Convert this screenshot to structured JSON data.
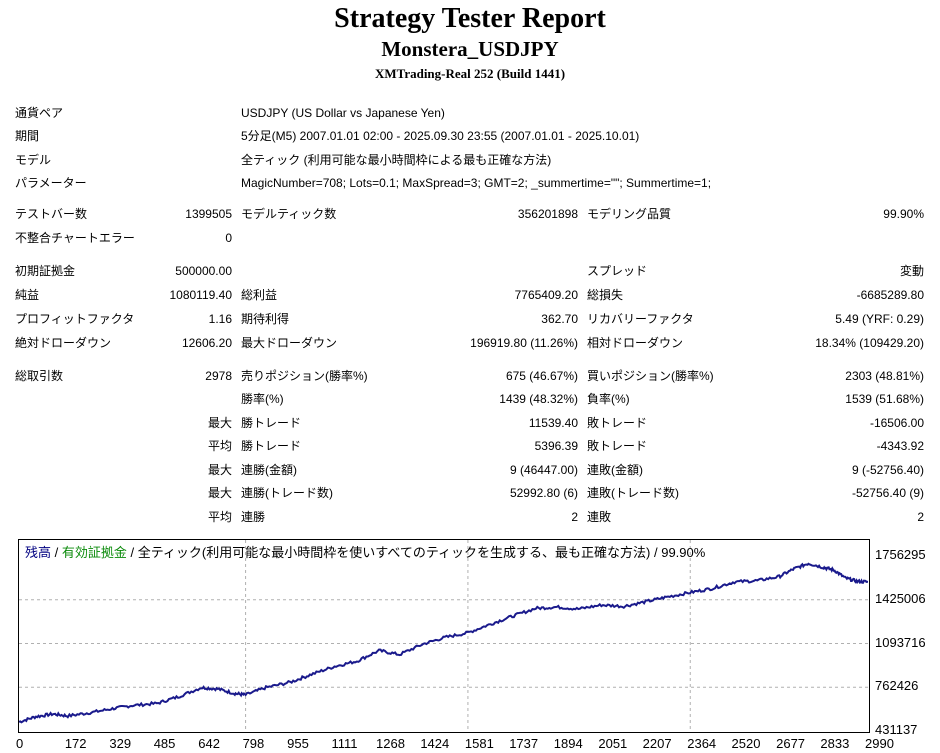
{
  "header": {
    "title": "Strategy Tester Report",
    "subtitle": "Monstera_USDJPY",
    "build": "XMTrading-Real 252 (Build 1441)"
  },
  "info": {
    "pair_label": "通貨ペア",
    "pair_value": "USDJPY (US Dollar vs Japanese Yen)",
    "period_label": "期間",
    "period_value": "5分足(M5) 2007.01.01 02:00 - 2025.09.30 23:55 (2007.01.01 - 2025.10.01)",
    "model_label": "モデル",
    "model_value": "全ティック (利用可能な最小時間枠による最も正確な方法)",
    "params_label": "パラメーター",
    "params_value": "MagicNumber=708; Lots=0.1; MaxSpread=3; GMT=2; _summertime=\"\"; Summertime=1;"
  },
  "stats": {
    "bars_label": "テストバー数",
    "bars_value": "1399505",
    "ticks_label": "モデルティック数",
    "ticks_value": "356201898",
    "quality_label": "モデリング品質",
    "quality_value": "99.90%",
    "mismatch_label": "不整合チャートエラー",
    "mismatch_value": "0",
    "deposit_label": "初期証拠金",
    "deposit_value": "500000.00",
    "spread_label": "スプレッド",
    "spread_value": "変動",
    "net_label": "純益",
    "net_value": "1080119.40",
    "gross_profit_label": "総利益",
    "gross_profit_value": "7765409.20",
    "gross_loss_label": "総損失",
    "gross_loss_value": "-6685289.80",
    "pf_label": "プロフィットファクタ",
    "pf_value": "1.16",
    "expected_label": "期待利得",
    "expected_value": "362.70",
    "recovery_label": "リカバリーファクタ",
    "recovery_value": "5.49 (YRF: 0.29)",
    "abs_dd_label": "絶対ドローダウン",
    "abs_dd_value": "12606.20",
    "max_dd_label": "最大ドローダウン",
    "max_dd_value": "196919.80 (11.26%)",
    "rel_dd_label": "相対ドローダウン",
    "rel_dd_value": "18.34% (109429.20)",
    "trades_label": "総取引数",
    "trades_value": "2978",
    "short_label": "売りポジション(勝率%)",
    "short_value": "675 (46.67%)",
    "long_label": "買いポジション(勝率%)",
    "long_value": "2303 (48.81%)",
    "win_label": "勝率(%)",
    "win_value": "1439 (48.32%)",
    "loss_label": "負率(%)",
    "loss_value": "1539 (51.68%)",
    "max_word": "最大",
    "avg_word": "平均",
    "max_win_label": "勝トレード",
    "max_win_value": "11539.40",
    "max_loss_label": "敗トレード",
    "max_loss_value": "-16506.00",
    "avg_win_label": "勝トレード",
    "avg_win_value": "5396.39",
    "avg_loss_label": "敗トレード",
    "avg_loss_value": "-4343.92",
    "cons_win_amt_label": "連勝(金額)",
    "cons_win_amt_value": "9 (46447.00)",
    "cons_loss_amt_label": "連敗(金額)",
    "cons_loss_amt_value": "9 (-52756.40)",
    "cons_win_cnt_label": "連勝(トレード数)",
    "cons_win_cnt_value": "52992.80 (6)",
    "cons_loss_cnt_label": "連敗(トレード数)",
    "cons_loss_cnt_value": "-52756.40 (9)",
    "avg_cons_win_label": "連勝",
    "avg_cons_win_value": "2",
    "avg_cons_loss_label": "連敗",
    "avg_cons_loss_value": "2"
  },
  "chart_legend": {
    "balance": "残高",
    "sep1": " / ",
    "equity": "有効証拠金",
    "rest": " / 全ティック(利用可能な最小時間枠を使いすべてのティックを生成する、最も正確な方法) / 99.90%"
  },
  "colors": {
    "balance_line": "#1a1a8c",
    "legend_blue": "#000080",
    "legend_green": "#0a8a0a",
    "grid": "#b0b0b0"
  },
  "chart_data": {
    "type": "line",
    "xlabel": "",
    "ylabel": "",
    "y_ticks": [
      "1756295",
      "1425006",
      "1093716",
      "762426",
      "431137"
    ],
    "x_ticks": [
      "0",
      "172",
      "329",
      "485",
      "642",
      "798",
      "955",
      "1111",
      "1268",
      "1424",
      "1581",
      "1737",
      "1894",
      "2051",
      "2207",
      "2364",
      "2520",
      "2677",
      "2833",
      "2990"
    ],
    "ylim": [
      431137,
      1756295
    ],
    "xlim": [
      0,
      2990
    ],
    "series": [
      {
        "x": [
          0,
          60,
          120,
          172,
          250,
          329,
          400,
          485,
          560,
          642,
          700,
          760,
          798,
          870,
          955,
          1030,
          1111,
          1190,
          1268,
          1340,
          1424,
          1500,
          1581,
          1660,
          1737,
          1820,
          1894,
          1970,
          2051,
          2130,
          2207,
          2280,
          2364,
          2440,
          2520,
          2600,
          2677,
          2730,
          2780,
          2833,
          2870,
          2910,
          2950,
          2990
        ],
        "y": [
          500000,
          540000,
          560000,
          545000,
          570000,
          600000,
          625000,
          640000,
          690000,
          760000,
          750000,
          715000,
          705000,
          760000,
          800000,
          860000,
          920000,
          960000,
          1040000,
          1010000,
          1090000,
          1140000,
          1175000,
          1240000,
          1300000,
          1360000,
          1370000,
          1355000,
          1385000,
          1375000,
          1410000,
          1445000,
          1480000,
          1510000,
          1560000,
          1570000,
          1600000,
          1660000,
          1700000,
          1670000,
          1650000,
          1590000,
          1565000,
          1560000
        ]
      }
    ]
  }
}
